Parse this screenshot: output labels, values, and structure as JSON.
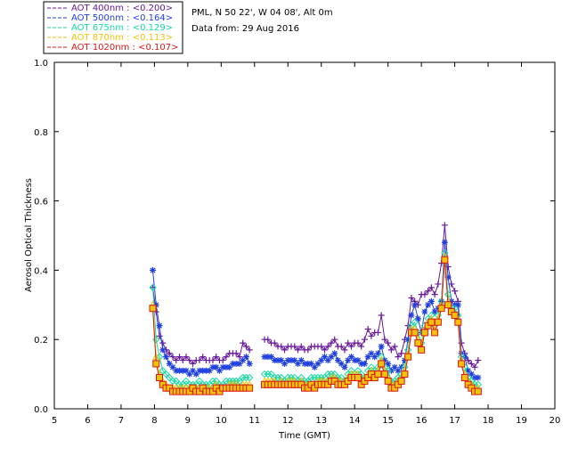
{
  "chart_data": {
    "type": "line",
    "title": "",
    "info_lines": [
      "PML, N 50 22', W 04 08', Alt 0m",
      "Data from: 29 Aug 2016"
    ],
    "xlabel": "Time (GMT)",
    "ylabel": "Aerosol Optical Thickness",
    "xlim": [
      5,
      20
    ],
    "ylim": [
      0.0,
      1.0
    ],
    "x_ticks": [
      5,
      6,
      7,
      8,
      9,
      10,
      11,
      12,
      13,
      14,
      15,
      16,
      17,
      18,
      19,
      20
    ],
    "x_tick_labels": [
      "5",
      "6",
      "7",
      "8",
      "9",
      "10",
      "11",
      "12",
      "13",
      "14",
      "15",
      "16",
      "17",
      "18",
      "19",
      "20"
    ],
    "y_ticks": [
      0.0,
      0.2,
      0.4,
      0.6,
      0.8,
      1.0
    ],
    "y_tick_labels": [
      "0.0",
      "0.2",
      "0.4",
      "0.6",
      "0.8",
      "1.0"
    ],
    "grid": false,
    "legend_position": "top-left, outside plot",
    "x": [
      7.95,
      8.05,
      8.15,
      8.25,
      8.35,
      8.45,
      8.55,
      8.65,
      8.75,
      8.85,
      8.95,
      9.05,
      9.15,
      9.25,
      9.35,
      9.45,
      9.55,
      9.65,
      9.75,
      9.85,
      9.95,
      10.05,
      10.15,
      10.25,
      10.35,
      10.45,
      10.55,
      10.65,
      10.75,
      10.85,
      null,
      11.3,
      11.4,
      11.5,
      11.6,
      11.7,
      11.8,
      11.9,
      12.0,
      12.1,
      12.2,
      12.3,
      12.4,
      12.5,
      12.6,
      12.7,
      12.8,
      12.9,
      13.0,
      13.1,
      13.2,
      13.3,
      13.4,
      13.5,
      13.6,
      13.7,
      13.8,
      13.9,
      14.0,
      14.1,
      14.2,
      14.3,
      14.4,
      14.5,
      14.6,
      14.7,
      14.8,
      14.9,
      15.0,
      15.1,
      15.2,
      15.3,
      15.4,
      15.5,
      15.6,
      15.7,
      15.8,
      15.9,
      16.0,
      16.1,
      16.2,
      16.3,
      16.4,
      16.5,
      16.6,
      16.7,
      16.8,
      16.9,
      17.0,
      17.1,
      17.2,
      17.3,
      17.4,
      17.5,
      17.6,
      17.7
    ],
    "series": [
      {
        "name": "AOT  400nm : <0.200>",
        "color": "#6a1b9a",
        "marker": "plus",
        "values": [
          0.35,
          0.28,
          0.21,
          0.19,
          0.17,
          0.16,
          0.15,
          0.14,
          0.15,
          0.14,
          0.15,
          0.14,
          0.13,
          0.14,
          0.14,
          0.15,
          0.14,
          0.14,
          0.14,
          0.15,
          0.14,
          0.14,
          0.15,
          0.16,
          0.16,
          0.16,
          0.15,
          0.19,
          0.18,
          0.17,
          null,
          0.2,
          0.2,
          0.19,
          0.19,
          0.18,
          0.18,
          0.17,
          0.18,
          0.18,
          0.18,
          0.17,
          0.18,
          0.17,
          0.17,
          0.18,
          0.18,
          0.18,
          0.18,
          0.17,
          0.18,
          0.19,
          0.2,
          0.18,
          0.18,
          0.17,
          0.19,
          0.18,
          0.19,
          0.19,
          0.18,
          0.2,
          0.23,
          0.21,
          0.22,
          0.22,
          0.27,
          0.2,
          0.19,
          0.17,
          0.18,
          0.15,
          0.16,
          0.2,
          0.24,
          0.32,
          0.31,
          0.3,
          0.33,
          0.33,
          0.34,
          0.35,
          0.33,
          0.36,
          0.42,
          0.53,
          0.41,
          0.36,
          0.34,
          0.31,
          0.19,
          0.16,
          0.14,
          0.13,
          0.12,
          0.14
        ]
      },
      {
        "name": "AOT  500nm : <0.164>",
        "color": "#1e3fe0",
        "marker": "star",
        "values": [
          0.4,
          0.3,
          0.24,
          0.17,
          0.15,
          0.13,
          0.12,
          0.11,
          0.11,
          0.11,
          0.11,
          0.1,
          0.11,
          0.1,
          0.11,
          0.11,
          0.11,
          0.11,
          0.12,
          0.12,
          0.11,
          0.12,
          0.12,
          0.12,
          0.13,
          0.13,
          0.13,
          0.14,
          0.15,
          0.13,
          null,
          0.15,
          0.15,
          0.15,
          0.14,
          0.14,
          0.14,
          0.13,
          0.14,
          0.14,
          0.14,
          0.13,
          0.14,
          0.13,
          0.13,
          0.13,
          0.12,
          0.13,
          0.14,
          0.15,
          0.14,
          0.15,
          0.16,
          0.14,
          0.13,
          0.12,
          0.14,
          0.15,
          0.14,
          0.14,
          0.13,
          0.13,
          0.15,
          0.16,
          0.15,
          0.16,
          0.18,
          0.14,
          0.13,
          0.11,
          0.12,
          0.11,
          0.12,
          0.14,
          0.2,
          0.27,
          0.3,
          0.26,
          0.22,
          0.28,
          0.3,
          0.31,
          0.28,
          0.29,
          0.31,
          0.48,
          0.38,
          0.31,
          0.3,
          0.3,
          0.16,
          0.15,
          0.11,
          0.1,
          0.09,
          0.09
        ]
      },
      {
        "name": "AOT  675nm : <0.129>",
        "color": "#16d9a6",
        "marker": "diamond",
        "values": [
          0.35,
          0.2,
          0.15,
          0.11,
          0.1,
          0.09,
          0.08,
          0.08,
          0.07,
          0.07,
          0.08,
          0.07,
          0.07,
          0.07,
          0.08,
          0.07,
          0.07,
          0.07,
          0.08,
          0.08,
          0.07,
          0.07,
          0.08,
          0.08,
          0.08,
          0.08,
          0.08,
          0.09,
          0.09,
          0.09,
          null,
          0.1,
          0.1,
          0.1,
          0.09,
          0.09,
          0.09,
          0.08,
          0.09,
          0.09,
          0.09,
          0.08,
          0.09,
          0.08,
          0.08,
          0.09,
          0.09,
          0.09,
          0.09,
          0.09,
          0.1,
          0.1,
          0.1,
          0.09,
          0.09,
          0.08,
          0.1,
          0.11,
          0.1,
          0.11,
          0.1,
          0.09,
          0.11,
          0.12,
          0.11,
          0.12,
          0.15,
          0.12,
          0.11,
          0.08,
          0.08,
          0.09,
          0.1,
          0.12,
          0.17,
          0.24,
          0.25,
          0.22,
          0.19,
          0.24,
          0.26,
          0.27,
          0.24,
          0.27,
          0.31,
          0.45,
          0.33,
          0.29,
          0.29,
          0.27,
          0.15,
          0.12,
          0.09,
          0.08,
          0.07,
          0.07
        ]
      },
      {
        "name": "AOT  870nm : <0.113>",
        "color": "#f2c20b",
        "marker": "triangle",
        "values": [
          0.3,
          0.15,
          0.1,
          0.08,
          0.07,
          0.06,
          0.06,
          0.06,
          0.06,
          0.06,
          0.06,
          0.06,
          0.06,
          0.06,
          0.06,
          0.06,
          0.06,
          0.06,
          0.06,
          0.07,
          0.06,
          0.06,
          0.06,
          0.07,
          0.07,
          0.07,
          0.06,
          0.07,
          0.07,
          0.07,
          null,
          0.08,
          0.08,
          0.08,
          0.08,
          0.07,
          0.08,
          0.07,
          0.08,
          0.08,
          0.08,
          0.07,
          0.08,
          0.07,
          0.07,
          0.07,
          0.07,
          0.08,
          0.08,
          0.08,
          0.08,
          0.09,
          0.09,
          0.08,
          0.08,
          0.07,
          0.09,
          0.1,
          0.1,
          0.1,
          0.08,
          0.09,
          0.1,
          0.11,
          0.1,
          0.11,
          0.14,
          0.11,
          0.09,
          0.07,
          0.07,
          0.08,
          0.09,
          0.11,
          0.16,
          0.23,
          0.23,
          0.2,
          0.18,
          0.23,
          0.25,
          0.26,
          0.23,
          0.26,
          0.3,
          0.44,
          0.31,
          0.28,
          0.27,
          0.26,
          0.14,
          0.1,
          0.08,
          0.07,
          0.06,
          0.06
        ]
      },
      {
        "name": "AOT 1020nm : <0.107>",
        "color": "#d81818",
        "marker": "square",
        "values": [
          0.29,
          0.13,
          0.09,
          0.07,
          0.06,
          0.06,
          0.05,
          0.05,
          0.05,
          0.05,
          0.05,
          0.05,
          0.06,
          0.05,
          0.05,
          0.06,
          0.05,
          0.05,
          0.05,
          0.06,
          0.05,
          0.06,
          0.06,
          0.06,
          0.06,
          0.06,
          0.06,
          0.06,
          0.06,
          0.06,
          null,
          0.07,
          0.07,
          0.07,
          0.07,
          0.07,
          0.07,
          0.07,
          0.07,
          0.07,
          0.07,
          0.07,
          0.07,
          0.06,
          0.06,
          0.07,
          0.06,
          0.07,
          0.07,
          0.07,
          0.07,
          0.08,
          0.08,
          0.07,
          0.07,
          0.07,
          0.08,
          0.09,
          0.09,
          0.09,
          0.07,
          0.08,
          0.09,
          0.1,
          0.09,
          0.1,
          0.13,
          0.1,
          0.08,
          0.06,
          0.06,
          0.07,
          0.08,
          0.1,
          0.15,
          0.22,
          0.22,
          0.19,
          0.17,
          0.22,
          0.24,
          0.25,
          0.22,
          0.25,
          0.29,
          0.43,
          0.3,
          0.28,
          0.27,
          0.25,
          0.13,
          0.09,
          0.07,
          0.06,
          0.05,
          0.05
        ]
      }
    ]
  }
}
